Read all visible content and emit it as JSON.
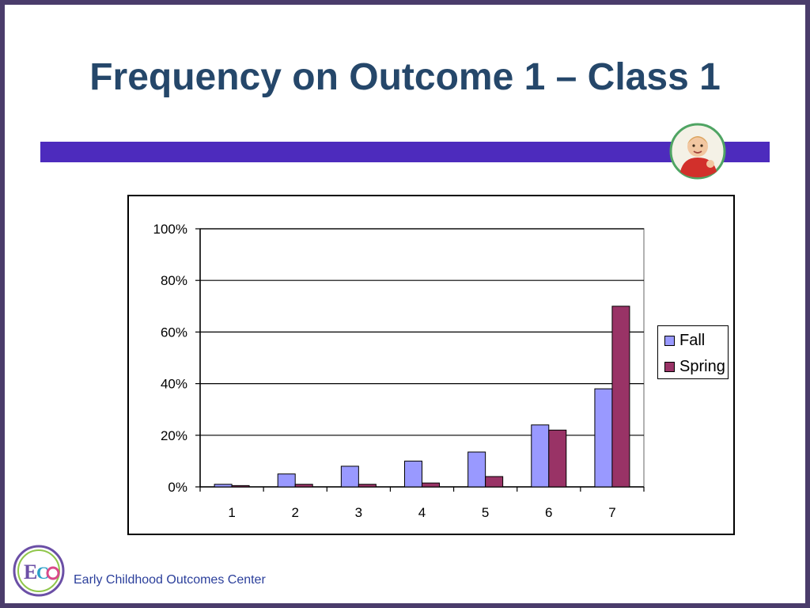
{
  "slide": {
    "title": "Frequency on Outcome 1 – Class 1",
    "footer_text": "Early Childhood Outcomes Center",
    "logo_text": "ECO"
  },
  "colors": {
    "title": "#25476a",
    "bar": "#4d2bbd",
    "fall": "#9999ff",
    "spring": "#993366",
    "border": "#4a3c6b"
  },
  "chart_data": {
    "type": "bar",
    "categories": [
      "1",
      "2",
      "3",
      "4",
      "5",
      "6",
      "7"
    ],
    "series": [
      {
        "name": "Fall",
        "color": "#9999ff",
        "values": [
          1,
          5,
          8,
          10,
          13.5,
          24,
          38
        ]
      },
      {
        "name": "Spring",
        "color": "#993366",
        "values": [
          0.5,
          1,
          1,
          1.5,
          4,
          22,
          70
        ]
      }
    ],
    "y_ticks": [
      "0%",
      "20%",
      "40%",
      "60%",
      "80%",
      "100%"
    ],
    "ylim": [
      0,
      100
    ],
    "grid": true,
    "legend_position": "right"
  }
}
